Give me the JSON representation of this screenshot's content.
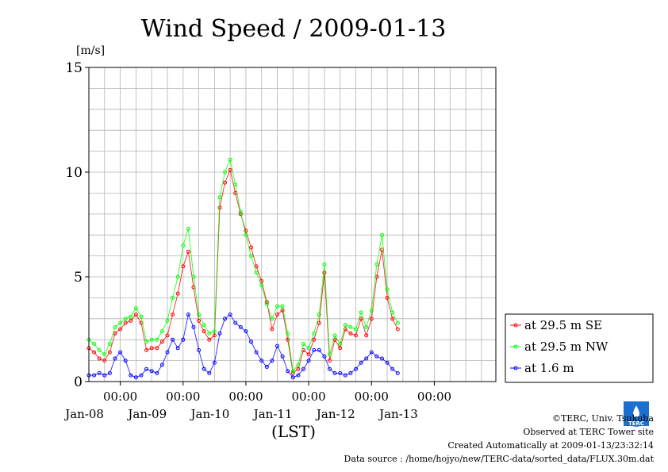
{
  "chart_data": {
    "type": "line",
    "title": "Wind Speed / 2009-01-13",
    "ylabel": "[m/s]",
    "xlabel": "(LST)",
    "ylim": [
      0,
      15
    ],
    "yticks": [
      0,
      5,
      10,
      15
    ],
    "xlim": [
      "2009-01-07T12:00",
      "2009-01-13T23:30"
    ],
    "xticks": [
      {
        "time": "2009-01-08T00:00",
        "label": "00:00",
        "date_label": "Jan-08"
      },
      {
        "time": "2009-01-09T00:00",
        "label": "00:00",
        "date_label": "Jan-09"
      },
      {
        "time": "2009-01-10T00:00",
        "label": "00:00",
        "date_label": "Jan-10"
      },
      {
        "time": "2009-01-11T00:00",
        "label": "00:00",
        "date_label": "Jan-11"
      },
      {
        "time": "2009-01-12T00:00",
        "label": "00:00",
        "date_label": "Jan-12"
      },
      {
        "time": "2009-01-13T00:00",
        "label": "00:00",
        "date_label": "Jan-13"
      }
    ],
    "grid": true,
    "legend_position": "right",
    "series": [
      {
        "name": "at 29.5 m SE",
        "color": "#ff0000",
        "points": [
          [
            "2009-01-07T12:00",
            1.6
          ],
          [
            "2009-01-07T14:00",
            1.4
          ],
          [
            "2009-01-07T16:00",
            1.1
          ],
          [
            "2009-01-07T18:00",
            1.0
          ],
          [
            "2009-01-07T20:00",
            1.4
          ],
          [
            "2009-01-07T22:00",
            2.3
          ],
          [
            "2009-01-08T00:00",
            2.5
          ],
          [
            "2009-01-08T02:00",
            2.8
          ],
          [
            "2009-01-08T04:00",
            2.9
          ],
          [
            "2009-01-08T06:00",
            3.2
          ],
          [
            "2009-01-08T08:00",
            2.8
          ],
          [
            "2009-01-08T10:00",
            1.5
          ],
          [
            "2009-01-08T12:00",
            1.6
          ],
          [
            "2009-01-08T14:00",
            1.6
          ],
          [
            "2009-01-08T16:00",
            1.9
          ],
          [
            "2009-01-08T18:00",
            2.2
          ],
          [
            "2009-01-08T20:00",
            3.2
          ],
          [
            "2009-01-08T22:00",
            4.2
          ],
          [
            "2009-01-09T00:00",
            5.5
          ],
          [
            "2009-01-09T02:00",
            6.2
          ],
          [
            "2009-01-09T04:00",
            4.5
          ],
          [
            "2009-01-09T06:00",
            2.9
          ],
          [
            "2009-01-09T08:00",
            2.4
          ],
          [
            "2009-01-09T10:00",
            2.0
          ],
          [
            "2009-01-09T12:00",
            2.2
          ],
          [
            "2009-01-09T14:00",
            8.3
          ],
          [
            "2009-01-09T16:00",
            9.5
          ],
          [
            "2009-01-09T18:00",
            10.1
          ],
          [
            "2009-01-09T20:00",
            9.0
          ],
          [
            "2009-01-09T22:00",
            8.0
          ],
          [
            "2009-01-10T00:00",
            7.2
          ],
          [
            "2009-01-10T02:00",
            6.4
          ],
          [
            "2009-01-10T04:00",
            5.5
          ],
          [
            "2009-01-10T06:00",
            4.8
          ],
          [
            "2009-01-10T08:00",
            3.8
          ],
          [
            "2009-01-10T10:00",
            2.5
          ],
          [
            "2009-01-10T12:00",
            3.2
          ],
          [
            "2009-01-10T14:00",
            3.4
          ],
          [
            "2009-01-10T16:00",
            2.0
          ],
          [
            "2009-01-10T18:00",
            0.4
          ],
          [
            "2009-01-10T20:00",
            0.6
          ],
          [
            "2009-01-10T22:00",
            1.5
          ],
          [
            "2009-01-11T00:00",
            1.3
          ],
          [
            "2009-01-11T02:00",
            2.0
          ],
          [
            "2009-01-11T04:00",
            2.8
          ],
          [
            "2009-01-11T06:00",
            5.2
          ],
          [
            "2009-01-11T08:00",
            1.0
          ],
          [
            "2009-01-11T10:00",
            2.0
          ],
          [
            "2009-01-11T12:00",
            1.6
          ],
          [
            "2009-01-11T14:00",
            2.5
          ],
          [
            "2009-01-11T16:00",
            2.3
          ],
          [
            "2009-01-11T18:00",
            2.2
          ],
          [
            "2009-01-11T20:00",
            3.0
          ],
          [
            "2009-01-11T22:00",
            2.2
          ],
          [
            "2009-01-12T00:00",
            3.0
          ],
          [
            "2009-01-12T02:00",
            5.0
          ],
          [
            "2009-01-12T04:00",
            6.3
          ],
          [
            "2009-01-12T06:00",
            4.0
          ],
          [
            "2009-01-12T08:00",
            3.0
          ],
          [
            "2009-01-12T10:00",
            2.5
          ]
        ]
      },
      {
        "name": "at 29.5 m NW",
        "color": "#00ff00",
        "points": [
          [
            "2009-01-07T12:00",
            2.0
          ],
          [
            "2009-01-07T14:00",
            1.8
          ],
          [
            "2009-01-07T16:00",
            1.5
          ],
          [
            "2009-01-07T18:00",
            1.3
          ],
          [
            "2009-01-07T20:00",
            1.8
          ],
          [
            "2009-01-07T22:00",
            2.6
          ],
          [
            "2009-01-08T00:00",
            2.8
          ],
          [
            "2009-01-08T02:00",
            3.0
          ],
          [
            "2009-01-08T04:00",
            3.1
          ],
          [
            "2009-01-08T06:00",
            3.5
          ],
          [
            "2009-01-08T08:00",
            3.1
          ],
          [
            "2009-01-08T10:00",
            1.9
          ],
          [
            "2009-01-08T12:00",
            2.0
          ],
          [
            "2009-01-08T14:00",
            2.0
          ],
          [
            "2009-01-08T16:00",
            2.4
          ],
          [
            "2009-01-08T18:00",
            2.9
          ],
          [
            "2009-01-08T20:00",
            4.0
          ],
          [
            "2009-01-08T22:00",
            5.0
          ],
          [
            "2009-01-09T00:00",
            6.5
          ],
          [
            "2009-01-09T02:00",
            7.3
          ],
          [
            "2009-01-09T04:00",
            5.0
          ],
          [
            "2009-01-09T06:00",
            3.2
          ],
          [
            "2009-01-09T08:00",
            2.7
          ],
          [
            "2009-01-09T10:00",
            2.3
          ],
          [
            "2009-01-09T12:00",
            2.4
          ],
          [
            "2009-01-09T14:00",
            8.8
          ],
          [
            "2009-01-09T16:00",
            10.0
          ],
          [
            "2009-01-09T18:00",
            10.6
          ],
          [
            "2009-01-09T20:00",
            9.4
          ],
          [
            "2009-01-09T22:00",
            8.1
          ],
          [
            "2009-01-10T00:00",
            7.0
          ],
          [
            "2009-01-10T02:00",
            6.0
          ],
          [
            "2009-01-10T04:00",
            5.2
          ],
          [
            "2009-01-10T06:00",
            4.6
          ],
          [
            "2009-01-10T08:00",
            3.7
          ],
          [
            "2009-01-10T10:00",
            3.0
          ],
          [
            "2009-01-10T12:00",
            3.6
          ],
          [
            "2009-01-10T14:00",
            3.6
          ],
          [
            "2009-01-10T16:00",
            2.3
          ],
          [
            "2009-01-10T18:00",
            0.5
          ],
          [
            "2009-01-10T20:00",
            0.8
          ],
          [
            "2009-01-10T22:00",
            1.8
          ],
          [
            "2009-01-11T00:00",
            1.6
          ],
          [
            "2009-01-11T02:00",
            2.3
          ],
          [
            "2009-01-11T04:00",
            3.2
          ],
          [
            "2009-01-11T06:00",
            5.6
          ],
          [
            "2009-01-11T08:00",
            1.3
          ],
          [
            "2009-01-11T10:00",
            2.2
          ],
          [
            "2009-01-11T12:00",
            1.8
          ],
          [
            "2009-01-11T14:00",
            2.7
          ],
          [
            "2009-01-11T16:00",
            2.6
          ],
          [
            "2009-01-11T18:00",
            2.5
          ],
          [
            "2009-01-11T20:00",
            3.3
          ],
          [
            "2009-01-11T22:00",
            2.6
          ],
          [
            "2009-01-12T00:00",
            3.4
          ],
          [
            "2009-01-12T02:00",
            5.6
          ],
          [
            "2009-01-12T04:00",
            7.0
          ],
          [
            "2009-01-12T06:00",
            4.4
          ],
          [
            "2009-01-12T08:00",
            3.3
          ],
          [
            "2009-01-12T10:00",
            2.8
          ]
        ]
      },
      {
        "name": "at 1.6 m",
        "color": "#0000ff",
        "points": [
          [
            "2009-01-07T12:00",
            0.3
          ],
          [
            "2009-01-07T14:00",
            0.3
          ],
          [
            "2009-01-07T16:00",
            0.4
          ],
          [
            "2009-01-07T18:00",
            0.3
          ],
          [
            "2009-01-07T20:00",
            0.4
          ],
          [
            "2009-01-07T22:00",
            1.1
          ],
          [
            "2009-01-08T00:00",
            1.4
          ],
          [
            "2009-01-08T02:00",
            1.0
          ],
          [
            "2009-01-08T04:00",
            0.3
          ],
          [
            "2009-01-08T06:00",
            0.2
          ],
          [
            "2009-01-08T08:00",
            0.3
          ],
          [
            "2009-01-08T10:00",
            0.6
          ],
          [
            "2009-01-08T12:00",
            0.5
          ],
          [
            "2009-01-08T14:00",
            0.4
          ],
          [
            "2009-01-08T16:00",
            0.8
          ],
          [
            "2009-01-08T18:00",
            1.4
          ],
          [
            "2009-01-08T20:00",
            2.0
          ],
          [
            "2009-01-08T22:00",
            1.6
          ],
          [
            "2009-01-09T00:00",
            2.0
          ],
          [
            "2009-01-09T02:00",
            3.2
          ],
          [
            "2009-01-09T04:00",
            2.6
          ],
          [
            "2009-01-09T06:00",
            1.5
          ],
          [
            "2009-01-09T08:00",
            0.6
          ],
          [
            "2009-01-09T10:00",
            0.4
          ],
          [
            "2009-01-09T12:00",
            0.9
          ],
          [
            "2009-01-09T14:00",
            2.3
          ],
          [
            "2009-01-09T16:00",
            3.0
          ],
          [
            "2009-01-09T18:00",
            3.2
          ],
          [
            "2009-01-09T20:00",
            2.8
          ],
          [
            "2009-01-09T22:00",
            2.6
          ],
          [
            "2009-01-10T00:00",
            2.4
          ],
          [
            "2009-01-10T02:00",
            1.9
          ],
          [
            "2009-01-10T04:00",
            1.4
          ],
          [
            "2009-01-10T06:00",
            1.0
          ],
          [
            "2009-01-10T08:00",
            0.7
          ],
          [
            "2009-01-10T10:00",
            1.0
          ],
          [
            "2009-01-10T12:00",
            1.7
          ],
          [
            "2009-01-10T14:00",
            1.2
          ],
          [
            "2009-01-10T16:00",
            0.5
          ],
          [
            "2009-01-10T18:00",
            0.2
          ],
          [
            "2009-01-10T20:00",
            0.3
          ],
          [
            "2009-01-10T22:00",
            0.6
          ],
          [
            "2009-01-11T00:00",
            1.0
          ],
          [
            "2009-01-11T02:00",
            1.5
          ],
          [
            "2009-01-11T04:00",
            1.5
          ],
          [
            "2009-01-11T06:00",
            1.2
          ],
          [
            "2009-01-11T08:00",
            0.6
          ],
          [
            "2009-01-11T10:00",
            0.4
          ],
          [
            "2009-01-11T12:00",
            0.4
          ],
          [
            "2009-01-11T14:00",
            0.3
          ],
          [
            "2009-01-11T16:00",
            0.4
          ],
          [
            "2009-01-11T18:00",
            0.6
          ],
          [
            "2009-01-11T20:00",
            0.9
          ],
          [
            "2009-01-11T22:00",
            1.1
          ],
          [
            "2009-01-12T00:00",
            1.4
          ],
          [
            "2009-01-12T02:00",
            1.2
          ],
          [
            "2009-01-12T04:00",
            1.1
          ],
          [
            "2009-01-12T06:00",
            0.9
          ],
          [
            "2009-01-12T08:00",
            0.6
          ],
          [
            "2009-01-12T10:00",
            0.4
          ]
        ]
      }
    ]
  },
  "credits": {
    "copyright": "©TERC, Univ. Tsukuba",
    "observed": "Observed at TERC Tower site",
    "created": "Created Automatically at 2009-01-13/23:32:14",
    "source": "Data source : /home/hojyo/new/TERC-data/sorted_data/FLUX.30m.dat"
  },
  "logo": {
    "text": "TERC",
    "color": "#1a6fd1",
    "icon": "terc-logo-icon"
  }
}
